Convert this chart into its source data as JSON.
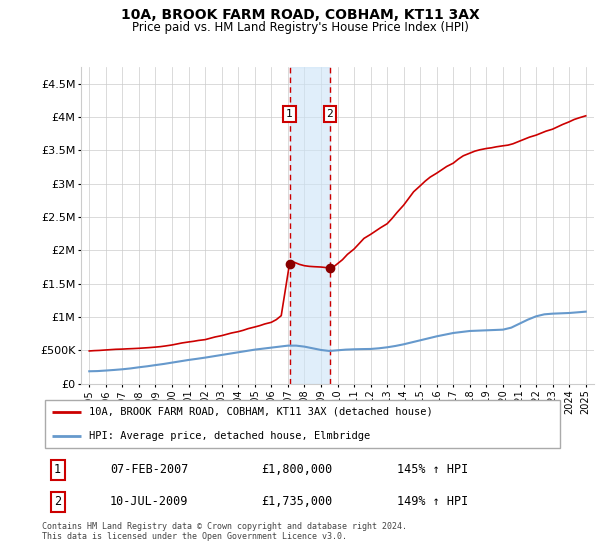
{
  "title": "10A, BROOK FARM ROAD, COBHAM, KT11 3AX",
  "subtitle": "Price paid vs. HM Land Registry's House Price Index (HPI)",
  "legend_label_red": "10A, BROOK FARM ROAD, COBHAM, KT11 3AX (detached house)",
  "legend_label_blue": "HPI: Average price, detached house, Elmbridge",
  "footnote": "Contains HM Land Registry data © Crown copyright and database right 2024.\nThis data is licensed under the Open Government Licence v3.0.",
  "sale1_date": "07-FEB-2007",
  "sale1_price": "£1,800,000",
  "sale1_hpi": "145% ↑ HPI",
  "sale1_year": 2007.1,
  "sale2_date": "10-JUL-2009",
  "sale2_price": "£1,735,000",
  "sale2_hpi": "149% ↑ HPI",
  "sale2_year": 2009.53,
  "ylim": [
    0,
    4750000
  ],
  "xlim": [
    1994.5,
    2025.5
  ],
  "red_color": "#cc0000",
  "blue_color": "#6699cc",
  "shade_color": "#cce4f7",
  "vline_color": "#cc0000",
  "background_color": "#ffffff",
  "grid_color": "#cccccc",
  "hpi_years": [
    1995,
    1995.5,
    1996,
    1996.5,
    1997,
    1997.5,
    1998,
    1998.5,
    1999,
    1999.5,
    2000,
    2000.5,
    2001,
    2001.5,
    2002,
    2002.5,
    2003,
    2003.5,
    2004,
    2004.5,
    2005,
    2005.5,
    2006,
    2006.5,
    2007,
    2007.5,
    2008,
    2008.5,
    2009,
    2009.5,
    2010,
    2010.5,
    2011,
    2011.5,
    2012,
    2012.5,
    2013,
    2013.5,
    2014,
    2014.5,
    2015,
    2015.5,
    2016,
    2016.5,
    2017,
    2017.5,
    2018,
    2018.5,
    2019,
    2019.5,
    2020,
    2020.5,
    2021,
    2021.5,
    2022,
    2022.5,
    2023,
    2023.5,
    2024,
    2024.5,
    2025
  ],
  "hpi_values": [
    185000,
    188000,
    196000,
    205000,
    215000,
    228000,
    245000,
    260000,
    278000,
    295000,
    315000,
    335000,
    355000,
    372000,
    390000,
    410000,
    430000,
    450000,
    470000,
    490000,
    510000,
    525000,
    540000,
    555000,
    570000,
    570000,
    555000,
    530000,
    505000,
    490000,
    500000,
    510000,
    515000,
    518000,
    520000,
    530000,
    545000,
    565000,
    590000,
    620000,
    650000,
    680000,
    710000,
    735000,
    760000,
    775000,
    790000,
    795000,
    800000,
    805000,
    810000,
    840000,
    900000,
    960000,
    1010000,
    1040000,
    1050000,
    1055000,
    1060000,
    1070000,
    1080000
  ],
  "price_years": [
    1995.0,
    1995.3,
    1995.6,
    1996.0,
    1996.3,
    1996.6,
    1997.0,
    1997.3,
    1997.6,
    1998.0,
    1998.3,
    1998.6,
    1999.0,
    1999.3,
    1999.6,
    2000.0,
    2000.3,
    2000.6,
    2001.0,
    2001.3,
    2001.6,
    2002.0,
    2002.3,
    2002.6,
    2003.0,
    2003.3,
    2003.6,
    2004.0,
    2004.3,
    2004.6,
    2005.0,
    2005.3,
    2005.6,
    2006.0,
    2006.3,
    2006.6,
    2007.1,
    2007.4,
    2007.7,
    2008.0,
    2008.3,
    2008.6,
    2009.0,
    2009.3,
    2009.53,
    2009.8,
    2010.0,
    2010.3,
    2010.6,
    2011.0,
    2011.3,
    2011.6,
    2012.0,
    2012.3,
    2012.6,
    2013.0,
    2013.3,
    2013.6,
    2014.0,
    2014.3,
    2014.6,
    2015.0,
    2015.3,
    2015.6,
    2016.0,
    2016.3,
    2016.6,
    2017.0,
    2017.3,
    2017.6,
    2018.0,
    2018.3,
    2018.6,
    2019.0,
    2019.3,
    2019.6,
    2020.0,
    2020.3,
    2020.6,
    2021.0,
    2021.3,
    2021.6,
    2022.0,
    2022.3,
    2022.6,
    2023.0,
    2023.3,
    2023.6,
    2024.0,
    2024.3,
    2024.6,
    2025.0
  ],
  "price_values": [
    490000,
    495000,
    498000,
    505000,
    510000,
    515000,
    518000,
    522000,
    525000,
    530000,
    535000,
    540000,
    548000,
    555000,
    565000,
    580000,
    595000,
    610000,
    625000,
    635000,
    648000,
    660000,
    680000,
    700000,
    720000,
    740000,
    760000,
    780000,
    800000,
    825000,
    850000,
    870000,
    895000,
    920000,
    960000,
    1020000,
    1800000,
    1820000,
    1790000,
    1770000,
    1760000,
    1755000,
    1750000,
    1742000,
    1735000,
    1760000,
    1800000,
    1860000,
    1940000,
    2020000,
    2100000,
    2180000,
    2240000,
    2290000,
    2340000,
    2400000,
    2480000,
    2570000,
    2680000,
    2780000,
    2880000,
    2970000,
    3040000,
    3100000,
    3160000,
    3210000,
    3260000,
    3310000,
    3370000,
    3420000,
    3460000,
    3490000,
    3510000,
    3530000,
    3540000,
    3555000,
    3570000,
    3580000,
    3600000,
    3640000,
    3670000,
    3700000,
    3730000,
    3760000,
    3790000,
    3820000,
    3855000,
    3890000,
    3930000,
    3965000,
    3990000,
    4020000
  ]
}
